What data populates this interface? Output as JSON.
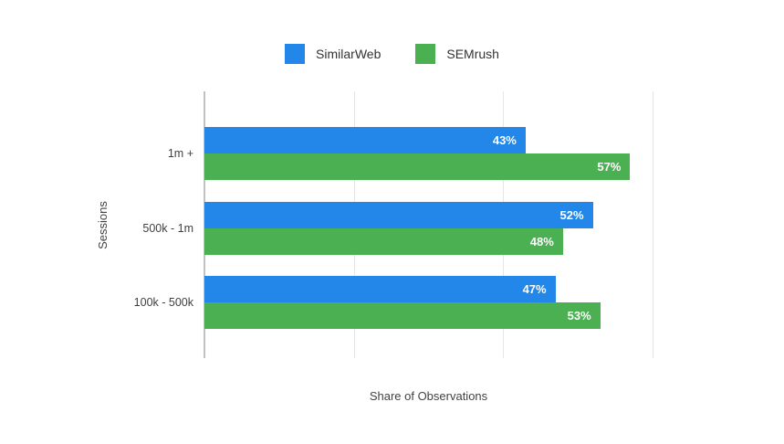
{
  "legend": {
    "items": [
      {
        "label": "SimilarWeb",
        "color": "#2287e8"
      },
      {
        "label": "SEMrush",
        "color": "#4bb052"
      }
    ]
  },
  "chart_data": {
    "type": "bar",
    "orientation": "horizontal",
    "title": "",
    "xlabel": "Share of Observations",
    "ylabel": "Sessions",
    "categories": [
      "1m +",
      "500k - 1m",
      "100k - 500k"
    ],
    "series": [
      {
        "name": "SimilarWeb",
        "color": "#2287e8",
        "values": [
          43,
          52,
          47
        ],
        "labels": [
          "43%",
          "52%",
          "47%"
        ]
      },
      {
        "name": "SEMrush",
        "color": "#4bb052",
        "values": [
          57,
          48,
          53
        ],
        "labels": [
          "57%",
          "48%",
          "53%"
        ]
      }
    ],
    "value_suffix": "%",
    "xlim": [
      0,
      60
    ],
    "gridline_interval": 20,
    "x_tick_labels_shown": false,
    "grid": true,
    "legend_position": "top",
    "colors": {
      "gridline": "#e6e6e6",
      "axis_line": "#c2c2c2",
      "value_label_text": "#ffffff",
      "axis_title_text": "#424242",
      "category_label_text": "#3f3f3f"
    }
  }
}
